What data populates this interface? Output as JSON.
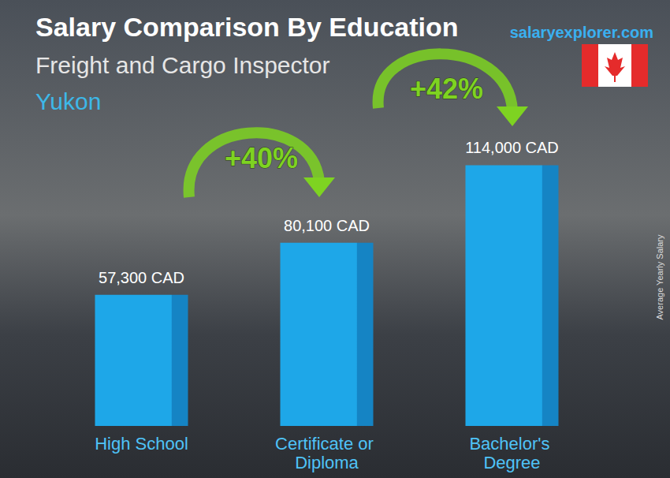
{
  "chart_data": {
    "type": "bar",
    "title": "Salary Comparison By Education",
    "subtitle": "Freight and Cargo Inspector",
    "region": "Yukon",
    "source": "salaryexplorer.com",
    "y_label": "Average Yearly Salary",
    "categories": [
      "High School",
      "Certificate or Diploma",
      "Bachelor's Degree"
    ],
    "values": [
      57300,
      80100,
      114000
    ],
    "value_labels": [
      "57,300 CAD",
      "80,100 CAD",
      "114,000 CAD"
    ],
    "annotations": [
      "+40%",
      "+42%"
    ],
    "color": "#1ea7e8",
    "ylim": [
      0,
      130000
    ],
    "data_labels": true,
    "tick_labels": "x",
    "grid": false
  }
}
